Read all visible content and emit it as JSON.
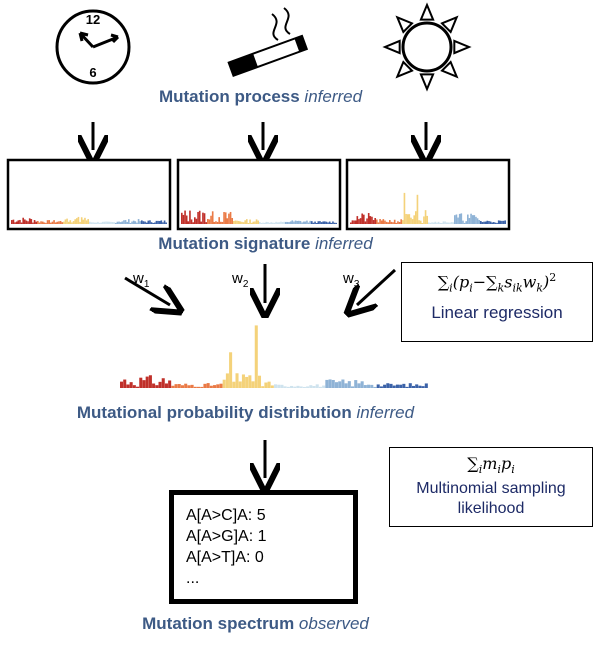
{
  "icons": {
    "clock": {
      "name": "clock-icon",
      "text_top": "12",
      "text_bottom": "6"
    },
    "cigarette": {
      "name": "cigarette-icon"
    },
    "sun": {
      "name": "sun-icon"
    }
  },
  "labels": {
    "process": {
      "main": "Mutation process",
      "note": "inferred"
    },
    "signature": {
      "main": "Mutation signature",
      "note": "inferred"
    },
    "distribution": {
      "main": "Mutational probability distribution",
      "note": "inferred"
    },
    "spectrum": {
      "main": "Mutation spectrum",
      "note": "observed"
    }
  },
  "weights": [
    "w1",
    "w2",
    "w3"
  ],
  "regression_box": {
    "caption": "Linear regression"
  },
  "likelihood_box": {
    "caption_line1": "Multinomial sampling",
    "caption_line2": "likelihood"
  },
  "spectrum_box": {
    "lines": [
      "A[A>C]A: 5",
      "A[A>G]A: 1",
      "A[A>T]A: 0",
      "..."
    ]
  },
  "colors": {
    "label_text": "#3d5a85",
    "caption_text": "#1d2a66",
    "bar_palette": [
      "#c0302a",
      "#ea7a46",
      "#f4d27a",
      "#cfe3ee",
      "#8fb3d6",
      "#3b62a8"
    ]
  }
}
